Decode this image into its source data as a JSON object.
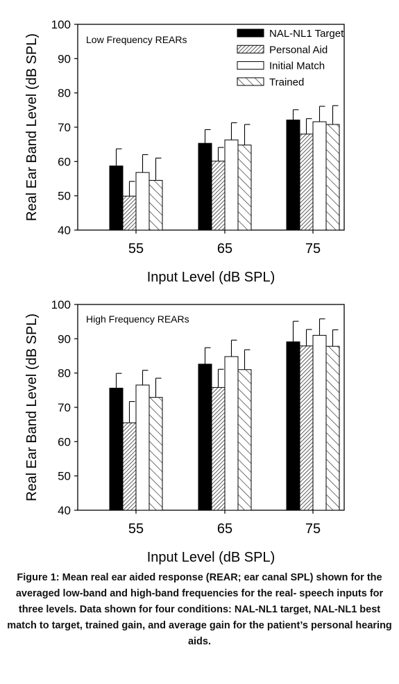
{
  "chart_data": [
    {
      "type": "bar",
      "title": "Low Frequency REARs",
      "xlabel": "Input Level (dB SPL)",
      "ylabel": "Real Ear Band Level (dB SPL)",
      "ylim": [
        40,
        100
      ],
      "yticks": [
        40,
        50,
        60,
        70,
        80,
        90,
        100
      ],
      "categories": [
        "55",
        "65",
        "75"
      ],
      "legend_position": "top-right",
      "series": [
        {
          "name": "NAL-NL1 Target",
          "values": [
            58.7,
            65.3,
            72.1
          ],
          "errors": [
            5.0,
            4.0,
            3.0
          ],
          "fill": "solid-black"
        },
        {
          "name": "Personal Aid",
          "values": [
            49.9,
            60.1,
            68.0
          ],
          "errors": [
            4.3,
            4.0,
            4.5
          ],
          "fill": "dense-hatch"
        },
        {
          "name": "Initial Match",
          "values": [
            56.8,
            66.3,
            71.6
          ],
          "errors": [
            5.2,
            5.0,
            4.5
          ],
          "fill": "white"
        },
        {
          "name": "Trained",
          "values": [
            54.5,
            64.8,
            70.8
          ],
          "errors": [
            6.5,
            6.0,
            5.5
          ],
          "fill": "sparse-hatch"
        }
      ]
    },
    {
      "type": "bar",
      "title": "High Frequency REARs",
      "xlabel": "Input Level (dB SPL)",
      "ylabel": "Real Ear Band Level (dB SPL)",
      "ylim": [
        40,
        100
      ],
      "yticks": [
        40,
        50,
        60,
        70,
        80,
        90,
        100
      ],
      "categories": [
        "55",
        "65",
        "75"
      ],
      "series": [
        {
          "name": "NAL-NL1 Target",
          "values": [
            75.6,
            82.6,
            89.1
          ],
          "errors": [
            4.3,
            4.8,
            6.0
          ],
          "fill": "solid-black"
        },
        {
          "name": "Personal Aid",
          "values": [
            65.5,
            75.8,
            87.9
          ],
          "errors": [
            6.2,
            5.3,
            4.8
          ],
          "fill": "dense-hatch"
        },
        {
          "name": "Initial Match",
          "values": [
            76.5,
            84.8,
            91.0
          ],
          "errors": [
            4.3,
            4.8,
            4.8
          ],
          "fill": "white"
        },
        {
          "name": "Trained",
          "values": [
            72.9,
            81.0,
            87.8
          ],
          "errors": [
            5.6,
            5.8,
            4.8
          ],
          "fill": "sparse-hatch"
        }
      ]
    }
  ],
  "caption": "Figure 1: Mean real ear aided response (REAR; ear canal SPL) shown for the averaged low-band and high-band frequencies for the real- speech inputs for three levels. Data shown for four conditions: NAL-NL1 target, NAL-NL1 best match to target, trained gain, and average gain for the patient’s personal hearing aids."
}
